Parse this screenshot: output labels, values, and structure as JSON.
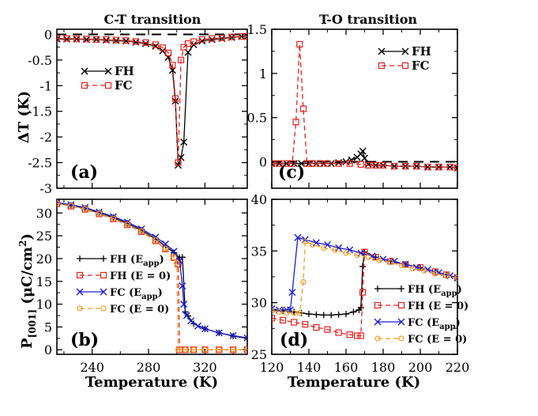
{
  "figure": {
    "col_titles": [
      "C-T transition",
      "T-O transition"
    ],
    "ylabel_top": "ΔT (K)",
    "ylabel_bottom_main": "P",
    "ylabel_bottom_sub": "[001]",
    "ylabel_bottom_unit": " (μC/cm",
    "ylabel_bottom_sup": "2",
    "ylabel_bottom_close": ")",
    "xlabel": "Temperature (K)"
  },
  "colors": {
    "FH": "#000000",
    "FC": "#e8221d",
    "FH_Eapp": "#000000",
    "FH_E0": "#e8221d",
    "FC_Eapp": "#1c1cd6",
    "FC_E0": "#f0a020"
  },
  "chart_data": [
    {
      "id": "a",
      "type": "line",
      "letter": "(a)",
      "xlim": [
        215,
        350
      ],
      "ylim": [
        -3,
        0.1
      ],
      "xticks": [
        240,
        280,
        320
      ],
      "show_xtick_labels": false,
      "yticks": [
        0,
        -0.5,
        -1,
        -1.5,
        -2,
        -2.5,
        -3
      ],
      "ytick_labels": [
        "0",
        "-0.5",
        "-1",
        "-1.5",
        "-2",
        "-2.5",
        "-3"
      ],
      "ref_line": 0,
      "legend": [
        "FH",
        "FC"
      ],
      "series": [
        {
          "name": "FH",
          "marker": "x",
          "style": "solid",
          "x": [
            215,
            222,
            229,
            236,
            243,
            250,
            257,
            264,
            271,
            278,
            285,
            290,
            294,
            297,
            299,
            301,
            303,
            305,
            308,
            312,
            318,
            325,
            332,
            339,
            346,
            350
          ],
          "y": [
            -0.09,
            -0.09,
            -0.09,
            -0.1,
            -0.1,
            -0.11,
            -0.12,
            -0.13,
            -0.15,
            -0.18,
            -0.23,
            -0.32,
            -0.45,
            -0.7,
            -1.3,
            -2.55,
            -2.4,
            -2.1,
            -0.35,
            -0.2,
            -0.13,
            -0.1,
            -0.08,
            -0.06,
            -0.04,
            -0.04
          ]
        },
        {
          "name": "FC",
          "marker": "square",
          "style": "dashed",
          "x": [
            215,
            222,
            229,
            236,
            243,
            250,
            257,
            264,
            271,
            278,
            285,
            290,
            294,
            297,
            299,
            301,
            303,
            305,
            308,
            312,
            318,
            325,
            332,
            339,
            346,
            350
          ],
          "y": [
            -0.08,
            -0.08,
            -0.09,
            -0.09,
            -0.1,
            -0.1,
            -0.11,
            -0.12,
            -0.14,
            -0.16,
            -0.2,
            -0.26,
            -0.36,
            -0.6,
            -1.25,
            -2.5,
            -0.5,
            -0.25,
            -0.18,
            -0.14,
            -0.1,
            -0.08,
            -0.07,
            -0.05,
            -0.04,
            -0.04
          ]
        }
      ]
    },
    {
      "id": "c",
      "type": "line",
      "letter": "(c)",
      "xlim": [
        120,
        220
      ],
      "ylim": [
        -0.3,
        1.5
      ],
      "xticks": [
        120,
        140,
        160,
        180,
        200,
        220
      ],
      "show_xtick_labels": false,
      "yticks": [
        0,
        0.5,
        1,
        1.5
      ],
      "ytick_labels": [
        "0",
        "0.5",
        "1",
        "1.5"
      ],
      "ref_line": 0,
      "legend": [
        "FH",
        "FC"
      ],
      "series": [
        {
          "name": "FH",
          "marker": "x",
          "style": "solid",
          "x": [
            120,
            124,
            128,
            132,
            136,
            140,
            144,
            148,
            152,
            156,
            160,
            163,
            166,
            168,
            169,
            170,
            172,
            176,
            180,
            186,
            192,
            198,
            204,
            210,
            216,
            220
          ],
          "y": [
            -0.02,
            -0.02,
            -0.02,
            -0.02,
            -0.02,
            -0.02,
            -0.02,
            -0.02,
            -0.02,
            -0.01,
            0.0,
            0.02,
            0.05,
            0.09,
            0.12,
            0.04,
            -0.03,
            -0.04,
            -0.04,
            -0.05,
            -0.05,
            -0.05,
            -0.06,
            -0.06,
            -0.06,
            -0.07
          ]
        },
        {
          "name": "FC",
          "marker": "square",
          "style": "dashed",
          "x": [
            120,
            124,
            128,
            131,
            133,
            135,
            137,
            139,
            142,
            146,
            150,
            156,
            162,
            168,
            172,
            176,
            180,
            186,
            192,
            198,
            204,
            210,
            216,
            220
          ],
          "y": [
            -0.02,
            -0.02,
            -0.02,
            -0.02,
            0.45,
            1.33,
            0.6,
            -0.02,
            -0.02,
            -0.02,
            -0.02,
            -0.02,
            -0.02,
            -0.03,
            -0.04,
            -0.04,
            -0.04,
            -0.05,
            -0.05,
            -0.05,
            -0.06,
            -0.06,
            -0.06,
            -0.07
          ]
        }
      ]
    },
    {
      "id": "b",
      "type": "line",
      "letter": "(b)",
      "xlim": [
        215,
        350
      ],
      "ylim": [
        -1,
        33
      ],
      "xticks": [
        240,
        280,
        320
      ],
      "xtick_labels": [
        "240",
        "280",
        "320"
      ],
      "show_xtick_labels": true,
      "yticks": [
        0,
        5,
        10,
        15,
        20,
        25,
        30
      ],
      "ytick_labels": [
        "0",
        "5",
        "10",
        "15",
        "20",
        "25",
        "30"
      ],
      "legend": [
        "FH (E_app)",
        "FH (E = 0)",
        "FC (E_app)",
        "FC (E = 0)"
      ],
      "series": [
        {
          "name": "FH (E_app)",
          "marker": "plus",
          "style": "solid",
          "x": [
            215,
            225,
            235,
            245,
            255,
            265,
            275,
            285,
            292,
            298,
            302,
            304,
            306,
            308,
            312,
            320,
            330,
            340,
            350
          ],
          "y": [
            32.2,
            31.7,
            31.0,
            30.0,
            29.0,
            27.7,
            26.2,
            24.3,
            22.7,
            21.3,
            20.2,
            20.3,
            8.3,
            7.4,
            5.7,
            4.6,
            3.7,
            3.0,
            2.5
          ]
        },
        {
          "name": "FH (E = 0)",
          "marker": "square",
          "style": "dashed",
          "x": [
            215,
            225,
            235,
            245,
            255,
            265,
            275,
            285,
            292,
            298,
            301,
            302,
            306,
            312,
            320,
            330,
            340,
            350
          ],
          "y": [
            32.0,
            31.5,
            30.8,
            29.8,
            28.7,
            27.4,
            25.9,
            23.9,
            22.1,
            20.2,
            18.8,
            0.0,
            0.0,
            0.0,
            0.0,
            0.0,
            0.0,
            0.0
          ]
        },
        {
          "name": "FC (E_app)",
          "marker": "x",
          "style": "solid",
          "x": [
            215,
            225,
            235,
            245,
            255,
            265,
            275,
            285,
            292,
            298,
            302,
            304,
            305,
            307,
            310,
            315,
            320,
            330,
            340,
            350
          ],
          "y": [
            32.3,
            31.8,
            31.2,
            30.2,
            29.2,
            28.0,
            26.5,
            24.7,
            23.2,
            21.6,
            19.5,
            14.0,
            10.0,
            7.5,
            6.3,
            5.2,
            4.6,
            3.7,
            3.1,
            2.6
          ]
        },
        {
          "name": "FC (E = 0)",
          "marker": "circle",
          "style": "dashed",
          "x": [
            215,
            225,
            235,
            245,
            255,
            265,
            275,
            285,
            292,
            298,
            300,
            301,
            306,
            312,
            320,
            330,
            340,
            350
          ],
          "y": [
            32.1,
            31.6,
            30.9,
            29.9,
            28.8,
            27.5,
            26.0,
            24.0,
            22.2,
            20.3,
            19.0,
            0.0,
            0.0,
            0.0,
            0.0,
            0.0,
            0.0,
            0.0
          ]
        }
      ]
    },
    {
      "id": "d",
      "type": "line",
      "letter": "(d)",
      "xlim": [
        120,
        220
      ],
      "ylim": [
        25,
        40
      ],
      "xticks": [
        120,
        140,
        160,
        180,
        200,
        220
      ],
      "xtick_labels": [
        "120",
        "140",
        "160",
        "180",
        "200",
        "220"
      ],
      "show_xtick_labels": true,
      "yticks": [
        25,
        30,
        35,
        40
      ],
      "ytick_labels": [
        "25",
        "30",
        "35",
        "40"
      ],
      "legend": [
        "FH (E_app)",
        "FH (E = 0)",
        "FC (E_app)",
        "FC (E = 0)"
      ],
      "series": [
        {
          "name": "FH (E_app)",
          "marker": "plus",
          "style": "solid",
          "x": [
            120,
            126,
            132,
            136,
            140,
            144,
            148,
            152,
            156,
            160,
            164,
            167,
            168,
            169,
            170,
            176,
            184,
            192,
            200,
            208,
            214,
            220
          ],
          "y": [
            29.3,
            29.2,
            29.1,
            29.0,
            28.9,
            28.85,
            28.8,
            28.8,
            28.85,
            28.9,
            29.1,
            29.3,
            29.5,
            33.5,
            34.9,
            34.4,
            34.0,
            33.7,
            33.4,
            33.0,
            32.7,
            32.4
          ]
        },
        {
          "name": "FH (E = 0)",
          "marker": "square",
          "style": "dashed",
          "x": [
            120,
            126,
            132,
            138,
            144,
            150,
            156,
            162,
            166,
            168,
            169,
            170,
            176,
            184,
            192,
            200,
            208,
            214,
            220
          ],
          "y": [
            28.5,
            28.3,
            28.1,
            27.9,
            27.6,
            27.4,
            27.1,
            26.9,
            26.8,
            26.8,
            31.0,
            34.9,
            34.4,
            34.0,
            33.7,
            33.4,
            33.0,
            32.7,
            32.4
          ]
        },
        {
          "name": "FC (E_app)",
          "marker": "x",
          "style": "solid",
          "x": [
            120,
            124,
            128,
            130,
            131,
            134,
            138,
            144,
            150,
            156,
            162,
            168,
            174,
            180,
            186,
            192,
            198,
            204,
            210,
            216,
            220
          ],
          "y": [
            29.4,
            29.3,
            29.3,
            29.3,
            31.0,
            36.3,
            36.1,
            35.8,
            35.6,
            35.3,
            35.1,
            34.8,
            34.5,
            34.2,
            34.0,
            33.7,
            33.4,
            33.2,
            32.9,
            32.6,
            32.4
          ]
        },
        {
          "name": "FC (E = 0)",
          "marker": "circle",
          "style": "dashed",
          "x": [
            120,
            124,
            128,
            132,
            135,
            137,
            138,
            142,
            148,
            154,
            160,
            166,
            172,
            178,
            184,
            190,
            196,
            202,
            208,
            214,
            220
          ],
          "y": [
            29.2,
            29.1,
            29.0,
            29.0,
            29.0,
            32.0,
            35.9,
            35.6,
            35.3,
            35.1,
            34.8,
            34.6,
            34.4,
            34.1,
            33.9,
            33.6,
            33.3,
            33.1,
            32.8,
            32.6,
            32.4
          ]
        }
      ]
    }
  ]
}
